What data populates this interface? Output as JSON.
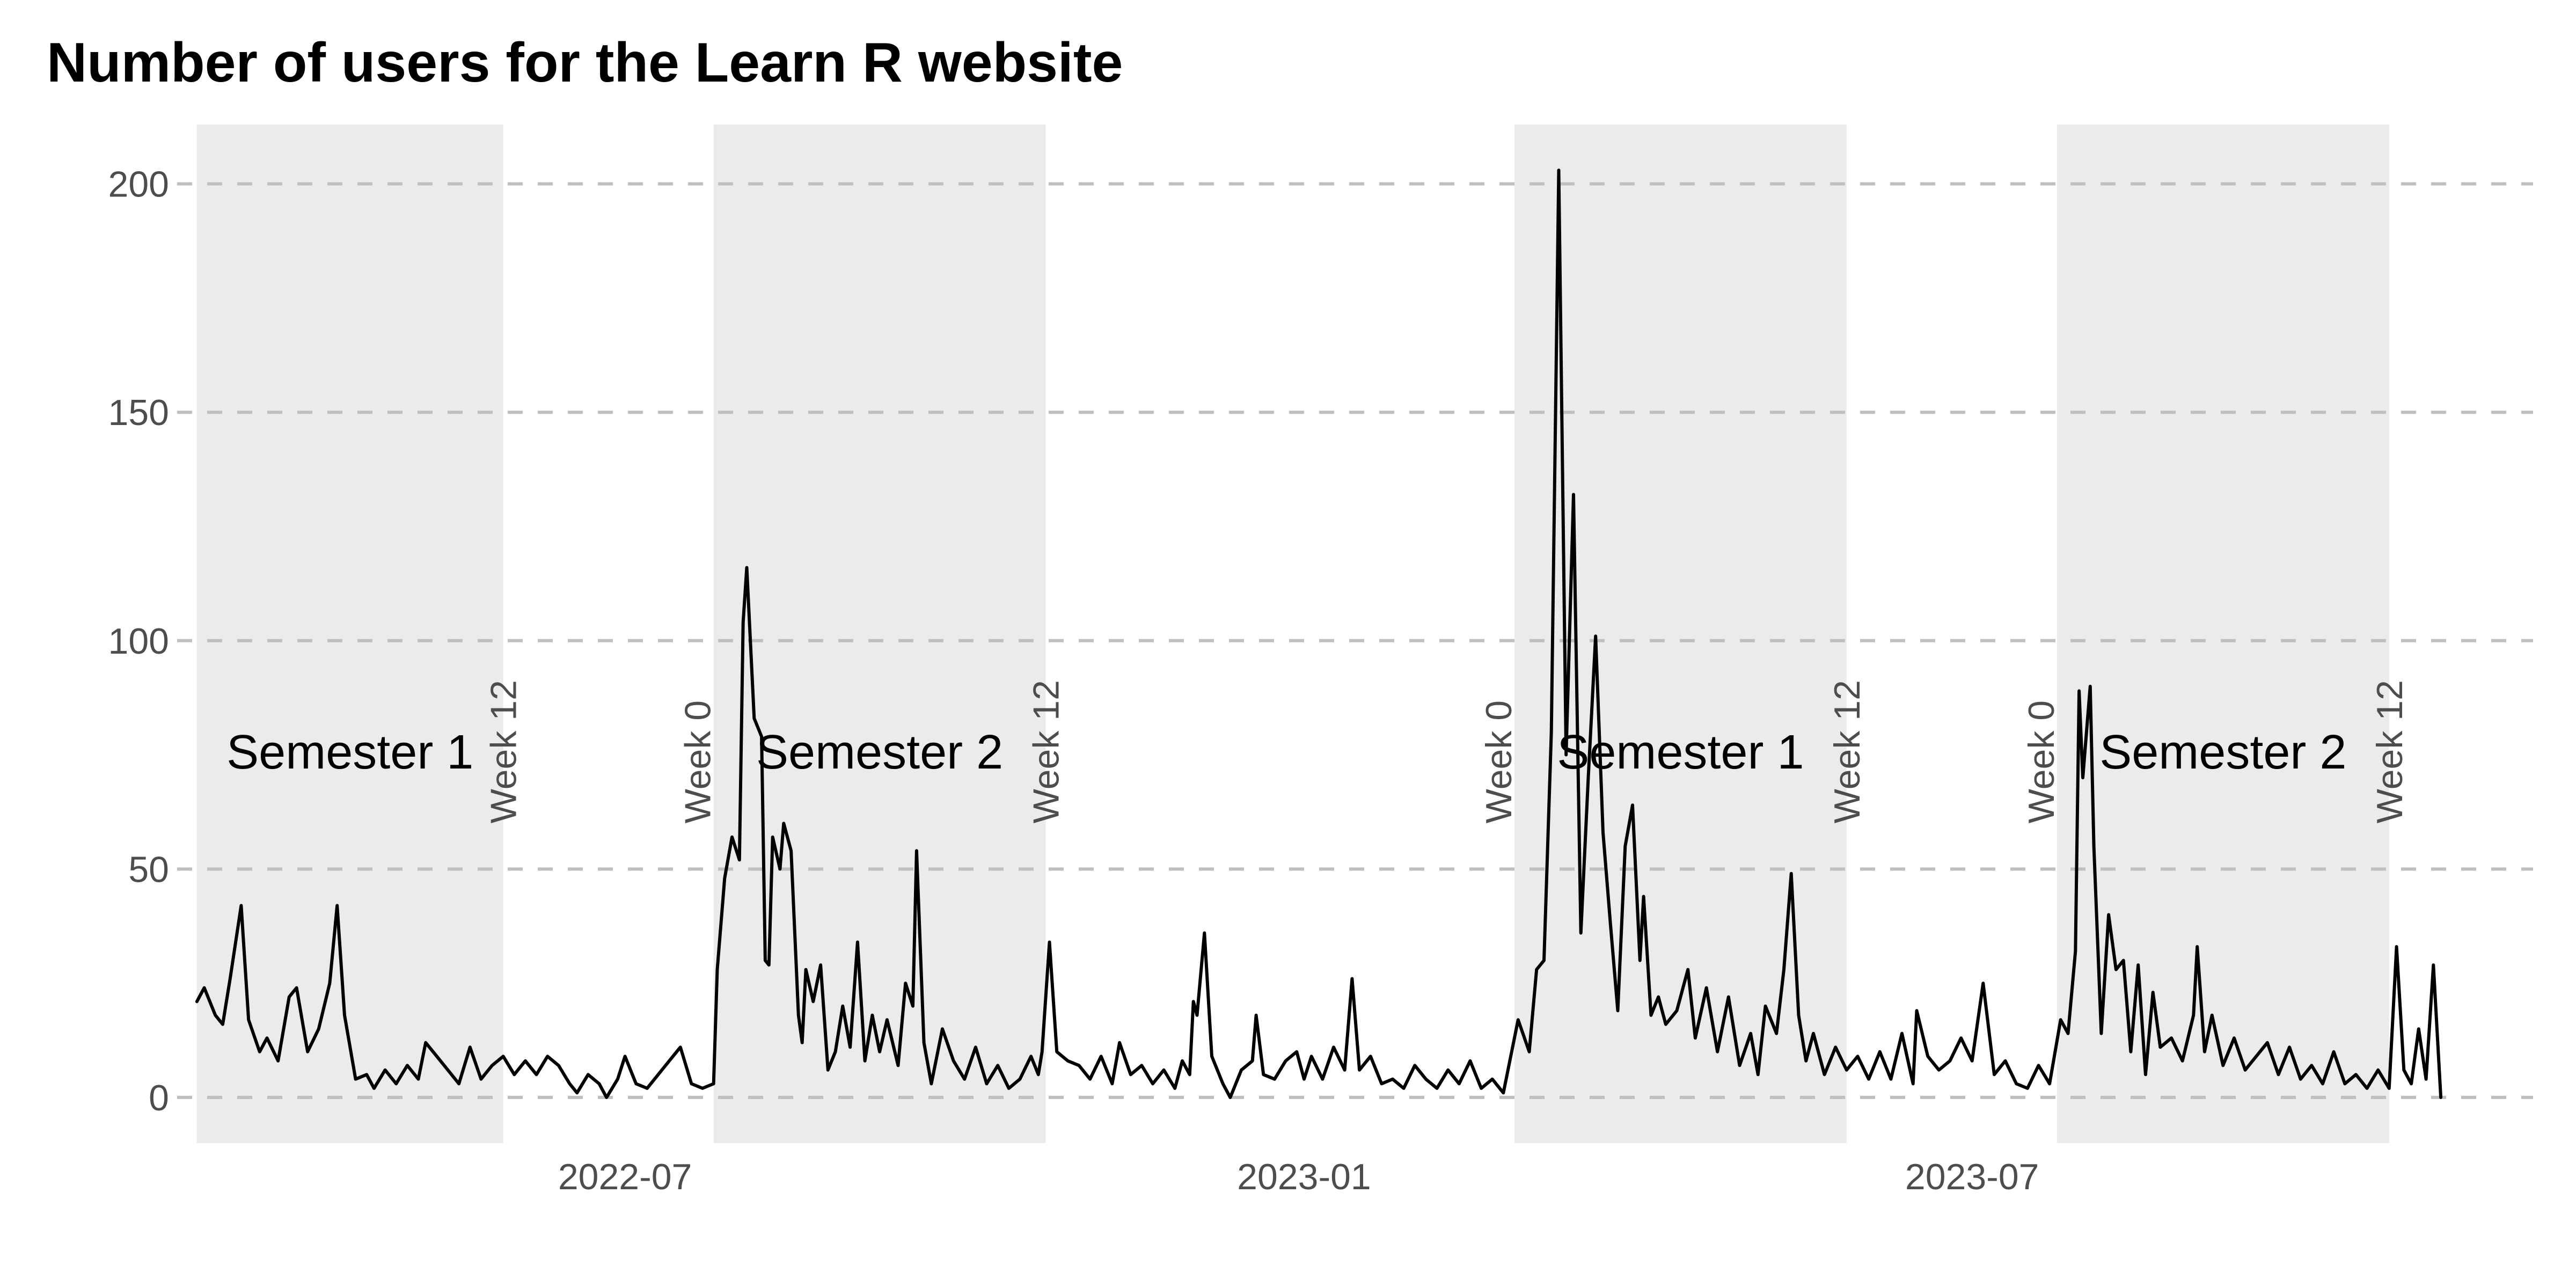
{
  "title": "Number of users for the Learn R website",
  "colors": {
    "background": "#ffffff",
    "band_fill": "#ebebeb",
    "gridline": "#bfbfbf",
    "line": "#000000",
    "tick_text": "#4d4d4d",
    "band_text": "#000000"
  },
  "chart_data": {
    "type": "line",
    "title": "Number of users for the Learn R website",
    "xlabel": "",
    "ylabel": "",
    "x_type": "date",
    "xlim": [
      "2022-03-06",
      "2023-11-30"
    ],
    "ylim": [
      -10,
      213
    ],
    "y_ticks": [
      0,
      50,
      100,
      150,
      200
    ],
    "x_ticks": [
      "2022-07-01",
      "2023-01-01",
      "2023-07-01"
    ],
    "x_tick_labels": [
      "2022-07",
      "2023-01",
      "2023-07"
    ],
    "grid": "horizontal dashed major gridlines only",
    "semesters": [
      {
        "name": "Semester 1",
        "start": "2022-03-07",
        "end": "2022-05-29",
        "start_label": "",
        "end_label": "Week 12"
      },
      {
        "name": "Semester 2",
        "start": "2022-07-25",
        "end": "2022-10-23",
        "start_label": "Week 0",
        "end_label": "Week 12"
      },
      {
        "name": "Semester 1",
        "start": "2023-02-27",
        "end": "2023-05-28",
        "start_label": "Week 0",
        "end_label": "Week 12"
      },
      {
        "name": "Semester 2",
        "start": "2023-07-24",
        "end": "2023-10-22",
        "start_label": "Week 0",
        "end_label": "Week 12"
      }
    ],
    "series": [
      {
        "points": [
          [
            "2022-03-07",
            21
          ],
          [
            "2022-03-09",
            24
          ],
          [
            "2022-03-12",
            18
          ],
          [
            "2022-03-14",
            16
          ],
          [
            "2022-03-16",
            26
          ],
          [
            "2022-03-19",
            42
          ],
          [
            "2022-03-21",
            17
          ],
          [
            "2022-03-24",
            10
          ],
          [
            "2022-03-26",
            13
          ],
          [
            "2022-03-29",
            8
          ],
          [
            "2022-04-01",
            22
          ],
          [
            "2022-04-03",
            24
          ],
          [
            "2022-04-06",
            10
          ],
          [
            "2022-04-09",
            15
          ],
          [
            "2022-04-12",
            25
          ],
          [
            "2022-04-14",
            42
          ],
          [
            "2022-04-16",
            18
          ],
          [
            "2022-04-19",
            4
          ],
          [
            "2022-04-22",
            5
          ],
          [
            "2022-04-24",
            2
          ],
          [
            "2022-04-27",
            6
          ],
          [
            "2022-04-30",
            3
          ],
          [
            "2022-05-03",
            7
          ],
          [
            "2022-05-06",
            4
          ],
          [
            "2022-05-08",
            12
          ],
          [
            "2022-05-11",
            9
          ],
          [
            "2022-05-14",
            6
          ],
          [
            "2022-05-17",
            3
          ],
          [
            "2022-05-20",
            11
          ],
          [
            "2022-05-23",
            4
          ],
          [
            "2022-05-26",
            7
          ],
          [
            "2022-05-29",
            9
          ],
          [
            "2022-06-01",
            5
          ],
          [
            "2022-06-04",
            8
          ],
          [
            "2022-06-07",
            5
          ],
          [
            "2022-06-10",
            9
          ],
          [
            "2022-06-13",
            7
          ],
          [
            "2022-06-16",
            3
          ],
          [
            "2022-06-18",
            1
          ],
          [
            "2022-06-21",
            5
          ],
          [
            "2022-06-24",
            3
          ],
          [
            "2022-06-26",
            0
          ],
          [
            "2022-06-29",
            4
          ],
          [
            "2022-07-01",
            9
          ],
          [
            "2022-07-04",
            3
          ],
          [
            "2022-07-07",
            2
          ],
          [
            "2022-07-10",
            5
          ],
          [
            "2022-07-13",
            8
          ],
          [
            "2022-07-16",
            11
          ],
          [
            "2022-07-19",
            3
          ],
          [
            "2022-07-22",
            2
          ],
          [
            "2022-07-25",
            3
          ],
          [
            "2022-07-26",
            28
          ],
          [
            "2022-07-28",
            48
          ],
          [
            "2022-07-30",
            57
          ],
          [
            "2022-08-01",
            52
          ],
          [
            "2022-08-02",
            104
          ],
          [
            "2022-08-03",
            116
          ],
          [
            "2022-08-05",
            83
          ],
          [
            "2022-08-07",
            79
          ],
          [
            "2022-08-08",
            30
          ],
          [
            "2022-08-09",
            29
          ],
          [
            "2022-08-10",
            57
          ],
          [
            "2022-08-12",
            50
          ],
          [
            "2022-08-13",
            60
          ],
          [
            "2022-08-15",
            54
          ],
          [
            "2022-08-17",
            18
          ],
          [
            "2022-08-18",
            12
          ],
          [
            "2022-08-19",
            28
          ],
          [
            "2022-08-21",
            21
          ],
          [
            "2022-08-23",
            29
          ],
          [
            "2022-08-25",
            6
          ],
          [
            "2022-08-27",
            10
          ],
          [
            "2022-08-29",
            20
          ],
          [
            "2022-08-31",
            11
          ],
          [
            "2022-09-02",
            34
          ],
          [
            "2022-09-04",
            8
          ],
          [
            "2022-09-06",
            18
          ],
          [
            "2022-09-08",
            10
          ],
          [
            "2022-09-10",
            17
          ],
          [
            "2022-09-13",
            7
          ],
          [
            "2022-09-15",
            25
          ],
          [
            "2022-09-17",
            20
          ],
          [
            "2022-09-18",
            54
          ],
          [
            "2022-09-20",
            12
          ],
          [
            "2022-09-22",
            3
          ],
          [
            "2022-09-25",
            15
          ],
          [
            "2022-09-28",
            8
          ],
          [
            "2022-10-01",
            4
          ],
          [
            "2022-10-04",
            11
          ],
          [
            "2022-10-07",
            3
          ],
          [
            "2022-10-10",
            7
          ],
          [
            "2022-10-13",
            2
          ],
          [
            "2022-10-16",
            4
          ],
          [
            "2022-10-19",
            9
          ],
          [
            "2022-10-21",
            5
          ],
          [
            "2022-10-22",
            10
          ],
          [
            "2022-10-24",
            34
          ],
          [
            "2022-10-26",
            10
          ],
          [
            "2022-10-29",
            8
          ],
          [
            "2022-11-01",
            7
          ],
          [
            "2022-11-04",
            4
          ],
          [
            "2022-11-07",
            9
          ],
          [
            "2022-11-10",
            3
          ],
          [
            "2022-11-12",
            12
          ],
          [
            "2022-11-15",
            5
          ],
          [
            "2022-11-18",
            7
          ],
          [
            "2022-11-21",
            3
          ],
          [
            "2022-11-24",
            6
          ],
          [
            "2022-11-27",
            2
          ],
          [
            "2022-11-29",
            8
          ],
          [
            "2022-12-01",
            5
          ],
          [
            "2022-12-02",
            21
          ],
          [
            "2022-12-03",
            18
          ],
          [
            "2022-12-05",
            36
          ],
          [
            "2022-12-07",
            9
          ],
          [
            "2022-12-10",
            3
          ],
          [
            "2022-12-12",
            0
          ],
          [
            "2022-12-15",
            6
          ],
          [
            "2022-12-18",
            8
          ],
          [
            "2022-12-19",
            18
          ],
          [
            "2022-12-21",
            5
          ],
          [
            "2022-12-24",
            4
          ],
          [
            "2022-12-27",
            8
          ],
          [
            "2022-12-30",
            10
          ],
          [
            "2023-01-01",
            4
          ],
          [
            "2023-01-03",
            9
          ],
          [
            "2023-01-06",
            4
          ],
          [
            "2023-01-09",
            11
          ],
          [
            "2023-01-12",
            6
          ],
          [
            "2023-01-14",
            26
          ],
          [
            "2023-01-16",
            6
          ],
          [
            "2023-01-19",
            9
          ],
          [
            "2023-01-22",
            3
          ],
          [
            "2023-01-25",
            4
          ],
          [
            "2023-01-28",
            2
          ],
          [
            "2023-01-31",
            7
          ],
          [
            "2023-02-03",
            4
          ],
          [
            "2023-02-06",
            2
          ],
          [
            "2023-02-09",
            6
          ],
          [
            "2023-02-12",
            3
          ],
          [
            "2023-02-15",
            8
          ],
          [
            "2023-02-18",
            2
          ],
          [
            "2023-02-21",
            4
          ],
          [
            "2023-02-24",
            1
          ],
          [
            "2023-02-28",
            17
          ],
          [
            "2023-03-03",
            10
          ],
          [
            "2023-03-05",
            28
          ],
          [
            "2023-03-07",
            30
          ],
          [
            "2023-03-09",
            80
          ],
          [
            "2023-03-11",
            203
          ],
          [
            "2023-03-13",
            75
          ],
          [
            "2023-03-15",
            132
          ],
          [
            "2023-03-17",
            36
          ],
          [
            "2023-03-19",
            70
          ],
          [
            "2023-03-21",
            101
          ],
          [
            "2023-03-23",
            58
          ],
          [
            "2023-03-25",
            38
          ],
          [
            "2023-03-27",
            19
          ],
          [
            "2023-03-29",
            55
          ],
          [
            "2023-03-31",
            64
          ],
          [
            "2023-04-02",
            30
          ],
          [
            "2023-04-03",
            44
          ],
          [
            "2023-04-05",
            18
          ],
          [
            "2023-04-07",
            22
          ],
          [
            "2023-04-09",
            16
          ],
          [
            "2023-04-12",
            19
          ],
          [
            "2023-04-15",
            28
          ],
          [
            "2023-04-17",
            13
          ],
          [
            "2023-04-20",
            24
          ],
          [
            "2023-04-23",
            10
          ],
          [
            "2023-04-26",
            22
          ],
          [
            "2023-04-29",
            7
          ],
          [
            "2023-05-02",
            14
          ],
          [
            "2023-05-04",
            5
          ],
          [
            "2023-05-06",
            20
          ],
          [
            "2023-05-09",
            14
          ],
          [
            "2023-05-11",
            28
          ],
          [
            "2023-05-13",
            49
          ],
          [
            "2023-05-15",
            18
          ],
          [
            "2023-05-17",
            8
          ],
          [
            "2023-05-19",
            14
          ],
          [
            "2023-05-22",
            5
          ],
          [
            "2023-05-25",
            11
          ],
          [
            "2023-05-28",
            6
          ],
          [
            "2023-05-31",
            9
          ],
          [
            "2023-06-03",
            4
          ],
          [
            "2023-06-06",
            10
          ],
          [
            "2023-06-09",
            4
          ],
          [
            "2023-06-12",
            14
          ],
          [
            "2023-06-15",
            3
          ],
          [
            "2023-06-16",
            19
          ],
          [
            "2023-06-19",
            9
          ],
          [
            "2023-06-22",
            6
          ],
          [
            "2023-06-25",
            8
          ],
          [
            "2023-06-28",
            13
          ],
          [
            "2023-07-01",
            8
          ],
          [
            "2023-07-04",
            25
          ],
          [
            "2023-07-07",
            5
          ],
          [
            "2023-07-10",
            8
          ],
          [
            "2023-07-13",
            3
          ],
          [
            "2023-07-16",
            2
          ],
          [
            "2023-07-19",
            7
          ],
          [
            "2023-07-22",
            3
          ],
          [
            "2023-07-25",
            17
          ],
          [
            "2023-07-27",
            14
          ],
          [
            "2023-07-29",
            32
          ],
          [
            "2023-07-30",
            89
          ],
          [
            "2023-07-31",
            70
          ],
          [
            "2023-08-02",
            90
          ],
          [
            "2023-08-03",
            55
          ],
          [
            "2023-08-05",
            14
          ],
          [
            "2023-08-07",
            40
          ],
          [
            "2023-08-09",
            28
          ],
          [
            "2023-08-11",
            30
          ],
          [
            "2023-08-13",
            10
          ],
          [
            "2023-08-15",
            29
          ],
          [
            "2023-08-17",
            5
          ],
          [
            "2023-08-19",
            23
          ],
          [
            "2023-08-21",
            11
          ],
          [
            "2023-08-24",
            13
          ],
          [
            "2023-08-27",
            8
          ],
          [
            "2023-08-30",
            18
          ],
          [
            "2023-08-31",
            33
          ],
          [
            "2023-09-02",
            10
          ],
          [
            "2023-09-04",
            18
          ],
          [
            "2023-09-07",
            7
          ],
          [
            "2023-09-10",
            13
          ],
          [
            "2023-09-13",
            6
          ],
          [
            "2023-09-16",
            9
          ],
          [
            "2023-09-19",
            12
          ],
          [
            "2023-09-22",
            5
          ],
          [
            "2023-09-25",
            11
          ],
          [
            "2023-09-28",
            4
          ],
          [
            "2023-10-01",
            7
          ],
          [
            "2023-10-04",
            3
          ],
          [
            "2023-10-07",
            10
          ],
          [
            "2023-10-10",
            3
          ],
          [
            "2023-10-13",
            5
          ],
          [
            "2023-10-16",
            2
          ],
          [
            "2023-10-19",
            6
          ],
          [
            "2023-10-22",
            2
          ],
          [
            "2023-10-24",
            33
          ],
          [
            "2023-10-26",
            6
          ],
          [
            "2023-10-28",
            3
          ],
          [
            "2023-10-30",
            15
          ],
          [
            "2023-11-01",
            4
          ],
          [
            "2023-11-03",
            29
          ],
          [
            "2023-11-05",
            0
          ]
        ]
      }
    ]
  }
}
